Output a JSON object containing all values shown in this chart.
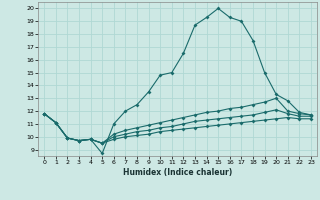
{
  "title": "",
  "xlabel": "Humidex (Indice chaleur)",
  "ylabel": "",
  "bg_color": "#cde8e4",
  "grid_color": "#b0d8d4",
  "line_color": "#1a6b6b",
  "xlim": [
    -0.5,
    23.5
  ],
  "ylim": [
    8.5,
    20.5
  ],
  "xticks": [
    0,
    1,
    2,
    3,
    4,
    5,
    6,
    7,
    8,
    9,
    10,
    11,
    12,
    13,
    14,
    15,
    16,
    17,
    18,
    19,
    20,
    21,
    22,
    23
  ],
  "yticks": [
    9,
    10,
    11,
    12,
    13,
    14,
    15,
    16,
    17,
    18,
    19,
    20
  ],
  "line1_x": [
    0,
    1,
    2,
    3,
    4,
    5,
    6,
    7,
    8,
    9,
    10,
    11,
    12,
    13,
    14,
    15,
    16,
    17,
    18,
    19,
    20,
    21,
    22,
    23
  ],
  "line1_y": [
    11.8,
    11.1,
    9.9,
    9.7,
    9.8,
    8.7,
    11.0,
    12.0,
    12.5,
    13.5,
    14.8,
    15.0,
    16.5,
    18.7,
    19.3,
    20.0,
    19.3,
    19.0,
    17.5,
    15.0,
    13.3,
    12.8,
    11.9,
    11.7
  ],
  "line2_x": [
    0,
    1,
    2,
    3,
    4,
    5,
    6,
    7,
    8,
    9,
    10,
    11,
    12,
    13,
    14,
    15,
    16,
    17,
    18,
    19,
    20,
    21,
    22,
    23
  ],
  "line2_y": [
    11.8,
    11.1,
    9.9,
    9.7,
    9.8,
    9.5,
    10.2,
    10.5,
    10.7,
    10.9,
    11.1,
    11.3,
    11.5,
    11.7,
    11.9,
    12.0,
    12.2,
    12.3,
    12.5,
    12.7,
    13.0,
    12.0,
    11.8,
    11.7
  ],
  "line3_x": [
    0,
    1,
    2,
    3,
    4,
    5,
    6,
    7,
    8,
    9,
    10,
    11,
    12,
    13,
    14,
    15,
    16,
    17,
    18,
    19,
    20,
    21,
    22,
    23
  ],
  "line3_y": [
    11.8,
    11.1,
    9.9,
    9.7,
    9.8,
    9.5,
    10.0,
    10.2,
    10.4,
    10.5,
    10.7,
    10.8,
    11.0,
    11.2,
    11.3,
    11.4,
    11.5,
    11.6,
    11.7,
    11.9,
    12.1,
    11.8,
    11.6,
    11.6
  ],
  "line4_x": [
    0,
    1,
    2,
    3,
    4,
    5,
    6,
    7,
    8,
    9,
    10,
    11,
    12,
    13,
    14,
    15,
    16,
    17,
    18,
    19,
    20,
    21,
    22,
    23
  ],
  "line4_y": [
    11.8,
    11.1,
    9.9,
    9.7,
    9.8,
    9.5,
    9.8,
    10.0,
    10.1,
    10.2,
    10.4,
    10.5,
    10.6,
    10.7,
    10.8,
    10.9,
    11.0,
    11.1,
    11.2,
    11.3,
    11.4,
    11.5,
    11.4,
    11.4
  ]
}
